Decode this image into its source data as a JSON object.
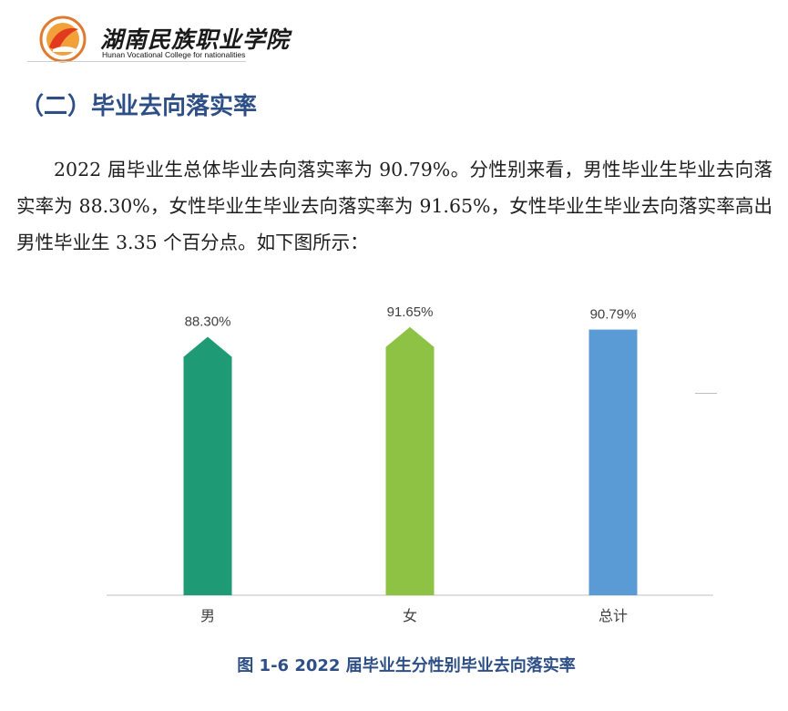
{
  "header": {
    "college_name_cn": "湖南民族职业学院",
    "college_name_en": "Hunan Vocational College for nationalities",
    "logo_icon": "college-emblem-icon",
    "colors": {
      "emblem_red": "#e13a1f",
      "emblem_orange": "#f2a03a"
    }
  },
  "section": {
    "title": "（二）毕业去向落实率"
  },
  "paragraph": {
    "text": "2022 届毕业生总体毕业去向落实率为 90.79%。分性别来看，男性毕业生毕业去向落实率为 88.30%，女性毕业生毕业去向落实率为 91.65%，女性毕业生毕业去向落实率高出男性毕业生 3.35 个百分点。如下图所示："
  },
  "chart_data": {
    "type": "bar",
    "categories": [
      "男",
      "女",
      "总计"
    ],
    "values": [
      88.3,
      91.65,
      90.79
    ],
    "data_labels": [
      "88.30%",
      "91.65%",
      "90.79%"
    ],
    "bar_colors": [
      "#1e9b74",
      "#8dc245",
      "#5b9bd5"
    ],
    "bar_shapes": [
      "pointed",
      "pointed",
      "flat"
    ],
    "ylim": [
      0,
      100
    ],
    "grid": false,
    "axis_color": "#bfbfbf",
    "label_color": "#404040",
    "title": "",
    "xlabel": "",
    "ylabel": ""
  },
  "caption": {
    "text": "图 1-6 2022 届毕业生分性别毕业去向落实率"
  }
}
